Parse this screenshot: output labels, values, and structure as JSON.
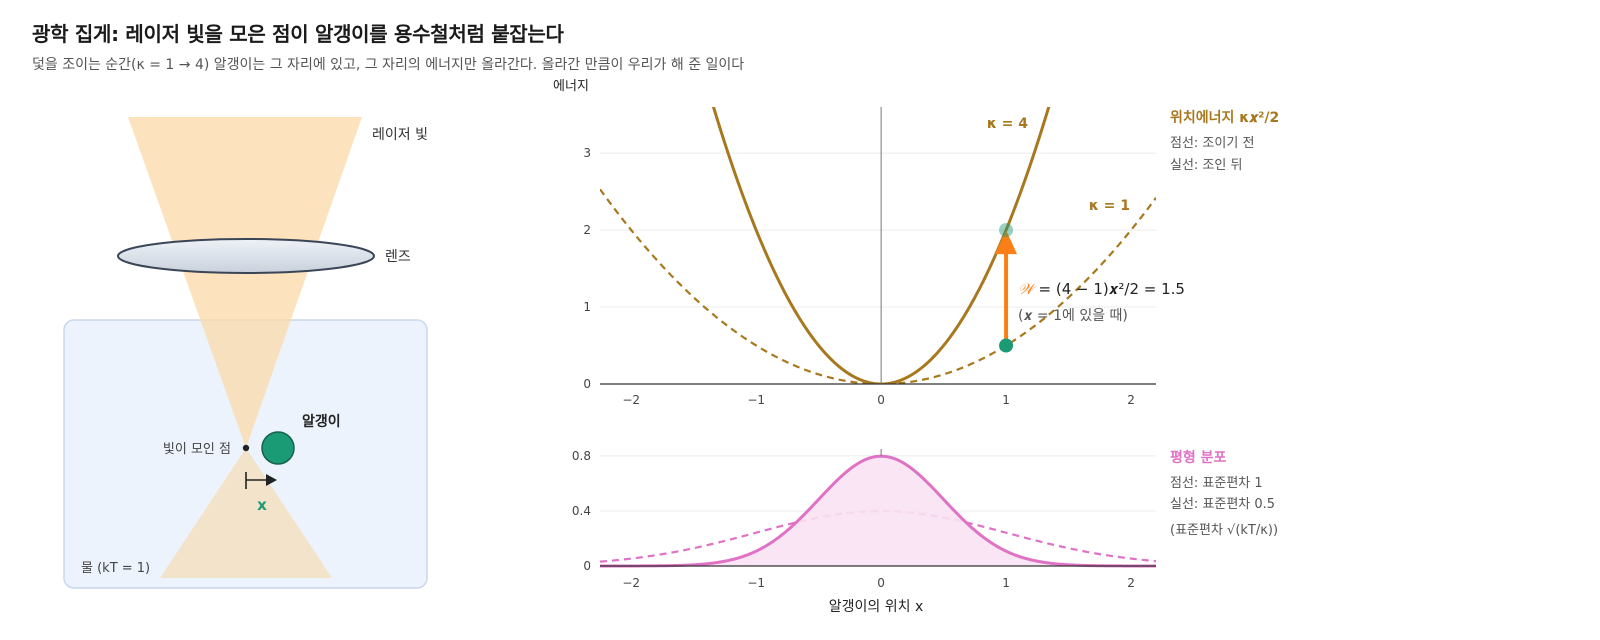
{
  "header": {
    "title": "광학 집게: 레이저 빛을 모은 점이 알갱이를 용수철처럼 붙잡는다",
    "subtitle": "덫을 조이는 순간(κ = 1 → 4) 알갱이는 그 자리에 있고, 그 자리의 에너지만 올라간다. 올라간 만큼이 우리가 해 준 일이다"
  },
  "diagram": {
    "laser_label": "레이저 빛",
    "lens_label": "렌즈",
    "focus_label": "빛이 모인 점",
    "bead_label": "알갱이",
    "x_label": "x",
    "water_label": "물 (kT = 1)"
  },
  "colors": {
    "trap_line": "#a8781e",
    "work_arrow": "#f97f16",
    "bead": "#1b9a76",
    "distribution": "#e072c6",
    "distribution_fill": "#f8e2f2",
    "water": "#ecf3fc",
    "laser": "#fbd9a8"
  },
  "chart_data": [
    {
      "type": "line",
      "title": "",
      "ylabel": "에너지",
      "xlabel": "",
      "xlim": [
        -2.25,
        2.2
      ],
      "ylim": [
        0,
        3.6
      ],
      "x_ticks": [
        "−2",
        "−1",
        "0",
        "1",
        "2"
      ],
      "y_ticks": [
        "0",
        "1",
        "2",
        "3"
      ],
      "grid": true,
      "series": [
        {
          "name": "κ = 1",
          "kappa": 1,
          "style": "dashed",
          "formula": "κx²/2"
        },
        {
          "name": "κ = 4",
          "kappa": 4,
          "style": "solid",
          "formula": "κx²/2"
        }
      ],
      "points": [
        {
          "x": 1,
          "y": 0.5,
          "label": "before"
        },
        {
          "x": 1,
          "y": 2,
          "label": "after"
        }
      ],
      "annotation": {
        "work_symbol": "𝒲",
        "work_equation": " = (4 − 1)𝒙²/2 = 1.5",
        "work_condition": "(𝒙 = 1에 있을 때)"
      },
      "legend": {
        "title": "위치에너지 κ𝒙²/2",
        "dashed": "점선: 조이기 전",
        "solid": "실선: 조인 뒤"
      }
    },
    {
      "type": "area",
      "title": "",
      "xlabel": "알갱이의 위치 x",
      "ylabel": "",
      "xlim": [
        -2.25,
        2.2
      ],
      "ylim": [
        0,
        0.85
      ],
      "x_ticks": [
        "−2",
        "−1",
        "0",
        "1",
        "2"
      ],
      "y_ticks": [
        "0",
        "0.4",
        "0.8"
      ],
      "grid": true,
      "series": [
        {
          "name": "표준편차 1",
          "sigma": 1,
          "style": "dashed"
        },
        {
          "name": "표준편차 0.5",
          "sigma": 0.5,
          "style": "solid"
        }
      ],
      "legend": {
        "title": "평형 분포",
        "dashed": "점선: 표준편차 1",
        "solid": "실선: 표준편차 0.5",
        "note": "(표준편차 √(kT/κ))"
      }
    }
  ]
}
